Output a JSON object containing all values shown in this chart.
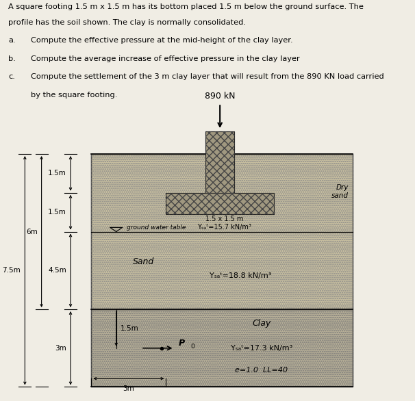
{
  "title_line1": "A square footing 1.5 m x 1.5 m has its bottom placed 1.5 m below the ground surface. The",
  "title_line2": "profile has the soil shown. The clay is normally consolidated.",
  "q_a": "Compute the effective pressure at the mid-height of the clay layer.",
  "q_b": "Compute the average increase of effective pressure in the clay layer",
  "q_c1": "Compute the settlement of the 3 m clay layer that will result from the 890 KN load carried",
  "q_c2": "by the square footing.",
  "load_label": "890 kN",
  "footing_label": "1.5 x 1.5 m",
  "dry_sand_label1": "Dry",
  "dry_sand_label2": "sand",
  "gwt_label": "ground water table",
  "sand_label": "Sand",
  "sand_gamma": "Yₛₐᵗ=18.8 kN/m³",
  "clay_label": "Clay",
  "clay_gamma": "Yₛₐᵗ=17.3 kN/m³",
  "clay_props": "e=1.0  LL=40",
  "dry_sand_gamma": "Yₛₐᵗ=15.7 kN/m³",
  "dim_6m": "6m",
  "dim_7p5m": "7.5m",
  "dim_3m_right": "3m",
  "dim_3m_bottom": "3m",
  "dim_1p5m_top": "1.5m",
  "dim_1p5m_mid": "1.5m",
  "dim_4p5m": "4.5m",
  "dim_1p5m_clay": "1.5m",
  "po_label": "P",
  "page_bg": "#f0ede4",
  "diagram_bg": "#ccc4aa",
  "sand_color": "#c8bfa0",
  "clay_color": "#b8b098",
  "footing_color": "#a09880"
}
